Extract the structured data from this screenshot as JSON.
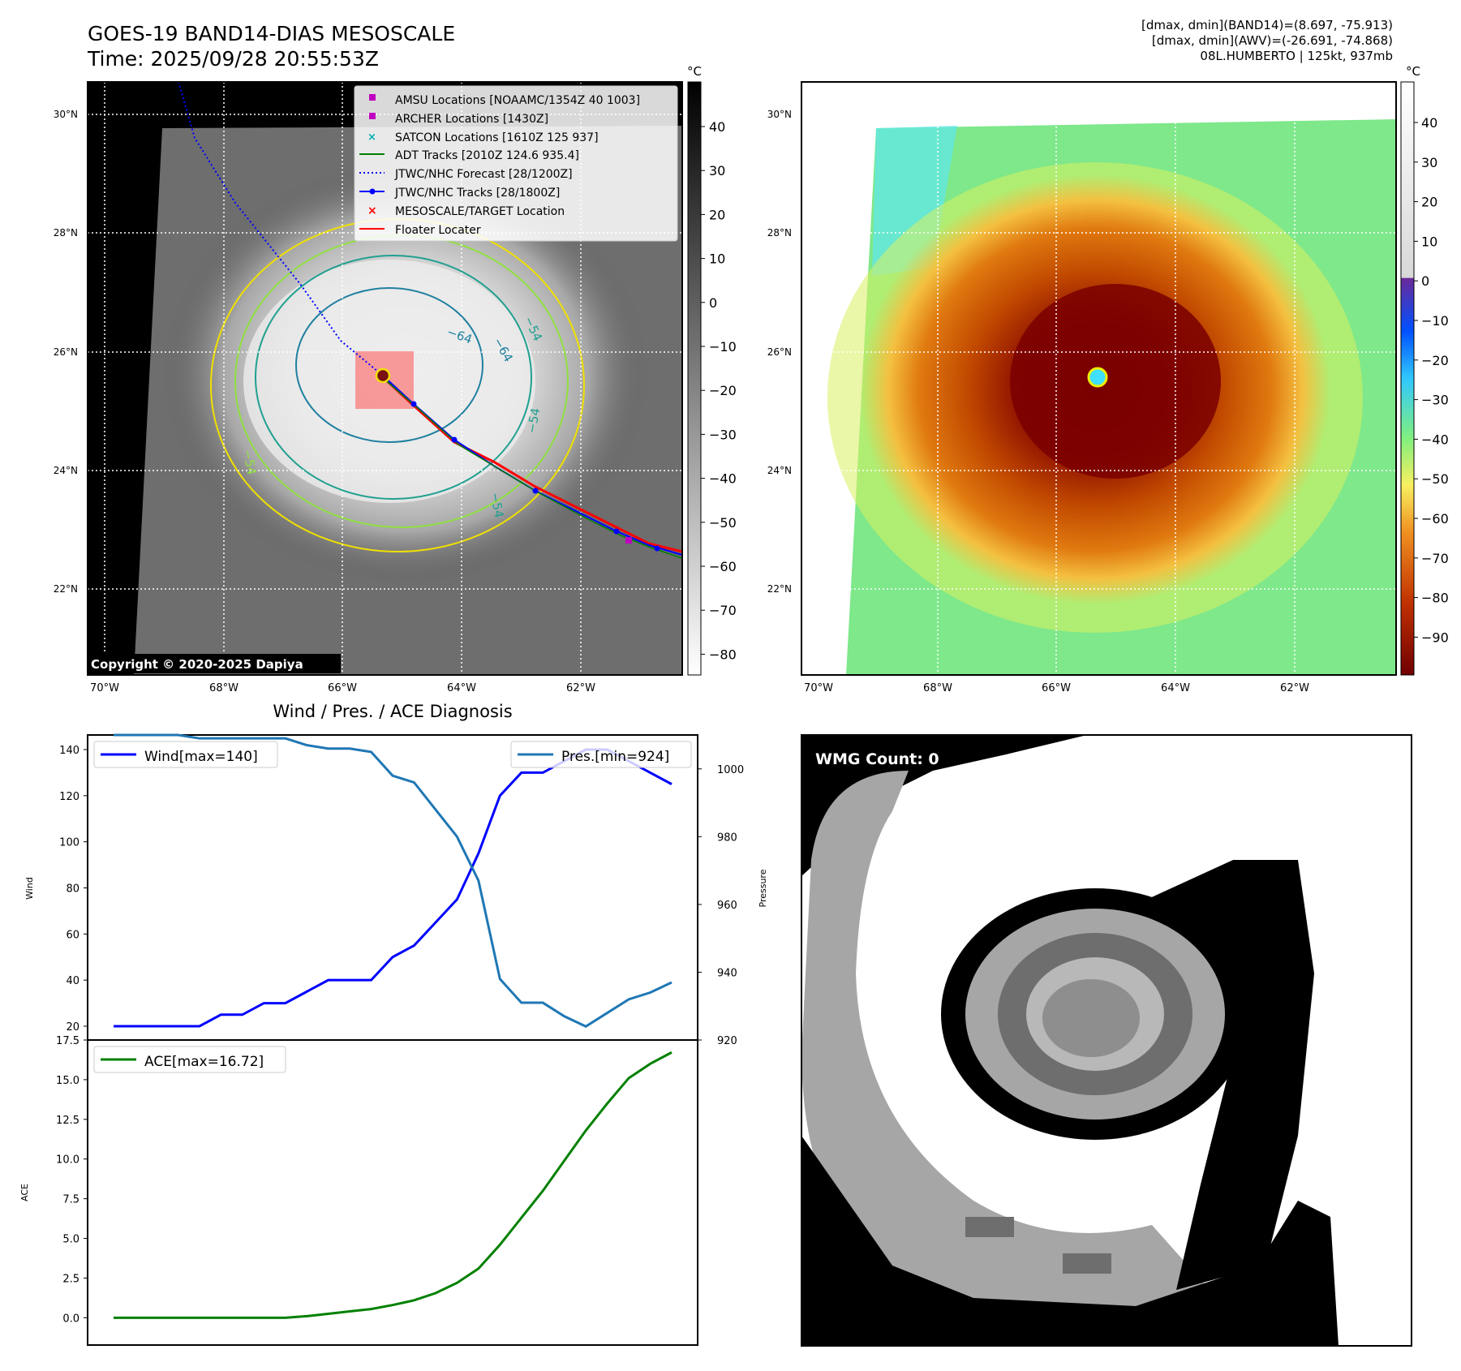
{
  "header": {
    "title": "GOES-19 BAND14-DIAS MESOSCALE",
    "time": "Time: 2025/09/28 20:55:53Z",
    "dmax_band14": "[dmax, dmin](BAND14)=(8.697, -75.913)",
    "dmax_awv": "[dmax, dmin](AWV)=(-26.691, -74.868)",
    "storm": "08L.HUMBERTO | 125kt, 937mb"
  },
  "panel_ir": {
    "lat_labels": [
      "30°N",
      "28°N",
      "26°N",
      "24°N",
      "22°N"
    ],
    "lon_labels": [
      "70°W",
      "68°W",
      "66°W",
      "64°W",
      "62°W"
    ],
    "colorbar_unit": "°C",
    "colorbar_ticks": [
      "40",
      "30",
      "20",
      "10",
      "0",
      "−10",
      "−20",
      "−30",
      "−40",
      "−50",
      "−60",
      "−70",
      "−80"
    ],
    "contour_labels": [
      "−64",
      "−64",
      "−54",
      "−54",
      "−54",
      "−54"
    ],
    "copyright": "Copyright © 2020-2025 Dapiya",
    "legend": [
      {
        "label": "AMSU Locations [NOAAMC/1354Z 40 1003]",
        "color": "#c000c0",
        "marker": "square"
      },
      {
        "label": "ARCHER Locations [1430Z]",
        "color": "#c000c0",
        "marker": "square"
      },
      {
        "label": "SATCON Locations [1610Z 125 937]",
        "color": "#00b0b0",
        "marker": "x"
      },
      {
        "label": "ADT Tracks [2010Z 124.6 935.4]",
        "color": "#008000",
        "marker": "line"
      },
      {
        "label": "JTWC/NHC Forecast [28/1200Z]",
        "color": "#0000ff",
        "marker": "dotted"
      },
      {
        "label": "JTWC/NHC Tracks [28/1800Z]",
        "color": "#0000ff",
        "marker": "line-dot"
      },
      {
        "label": "MESOSCALE/TARGET Location",
        "color": "#ff0000",
        "marker": "x"
      },
      {
        "label": "Floater Locater",
        "color": "#ff0000",
        "marker": "line"
      }
    ]
  },
  "panel_awv": {
    "lat_labels": [
      "30°N",
      "28°N",
      "26°N",
      "24°N",
      "22°N"
    ],
    "lon_labels": [
      "70°W",
      "68°W",
      "66°W",
      "64°W",
      "62°W"
    ],
    "colorbar_unit": "°C",
    "colorbar_ticks": [
      "40",
      "30",
      "20",
      "10",
      "0",
      "−10",
      "−20",
      "−30",
      "−40",
      "−50",
      "−60",
      "−70",
      "−80",
      "−90"
    ]
  },
  "panel_wmg": {
    "label": "WMG Count: 0"
  },
  "chart_data": [
    {
      "type": "line",
      "title": "Wind / Pres. / ACE Diagnosis",
      "ylabel": "Wind",
      "ylabel_right": "Pressure",
      "ylim": [
        20,
        140
      ],
      "ylim_right": [
        920,
        1010
      ],
      "y_ticks": [
        20,
        40,
        60,
        80,
        100,
        120,
        140
      ],
      "y_ticks_right": [
        920,
        940,
        960,
        980,
        1000
      ],
      "series": [
        {
          "name": "Wind[max=140]",
          "color": "#0000ff",
          "axis": "left",
          "values": [
            20,
            20,
            20,
            20,
            20,
            25,
            25,
            30,
            30,
            35,
            40,
            40,
            40,
            50,
            55,
            65,
            75,
            95,
            120,
            130,
            130,
            135,
            140,
            140,
            135,
            130,
            125
          ]
        },
        {
          "name": "Pres.[min=924]",
          "color": "#1f77b4",
          "axis": "right",
          "values": [
            1010,
            1010,
            1010,
            1010,
            1009,
            1009,
            1009,
            1009,
            1009,
            1007,
            1006,
            1006,
            1005,
            998,
            996,
            988,
            980,
            967,
            938,
            931,
            931,
            927,
            924,
            928,
            932,
            934,
            937
          ]
        }
      ]
    },
    {
      "type": "line",
      "ylabel": "ACE",
      "ylim": [
        -0.8,
        17.5
      ],
      "y_ticks": [
        "0.0",
        "2.5",
        "5.0",
        "7.5",
        "10.0",
        "12.5",
        "15.0",
        "17.5"
      ],
      "series": [
        {
          "name": "ACE[max=16.72]",
          "color": "#008000",
          "values": [
            0,
            0,
            0,
            0,
            0,
            0,
            0,
            0,
            0,
            0.1,
            0.25,
            0.4,
            0.55,
            0.8,
            1.1,
            1.55,
            2.2,
            3.1,
            4.6,
            6.3,
            8.0,
            9.9,
            11.8,
            13.5,
            15.1,
            16.0,
            16.72
          ]
        }
      ]
    }
  ]
}
